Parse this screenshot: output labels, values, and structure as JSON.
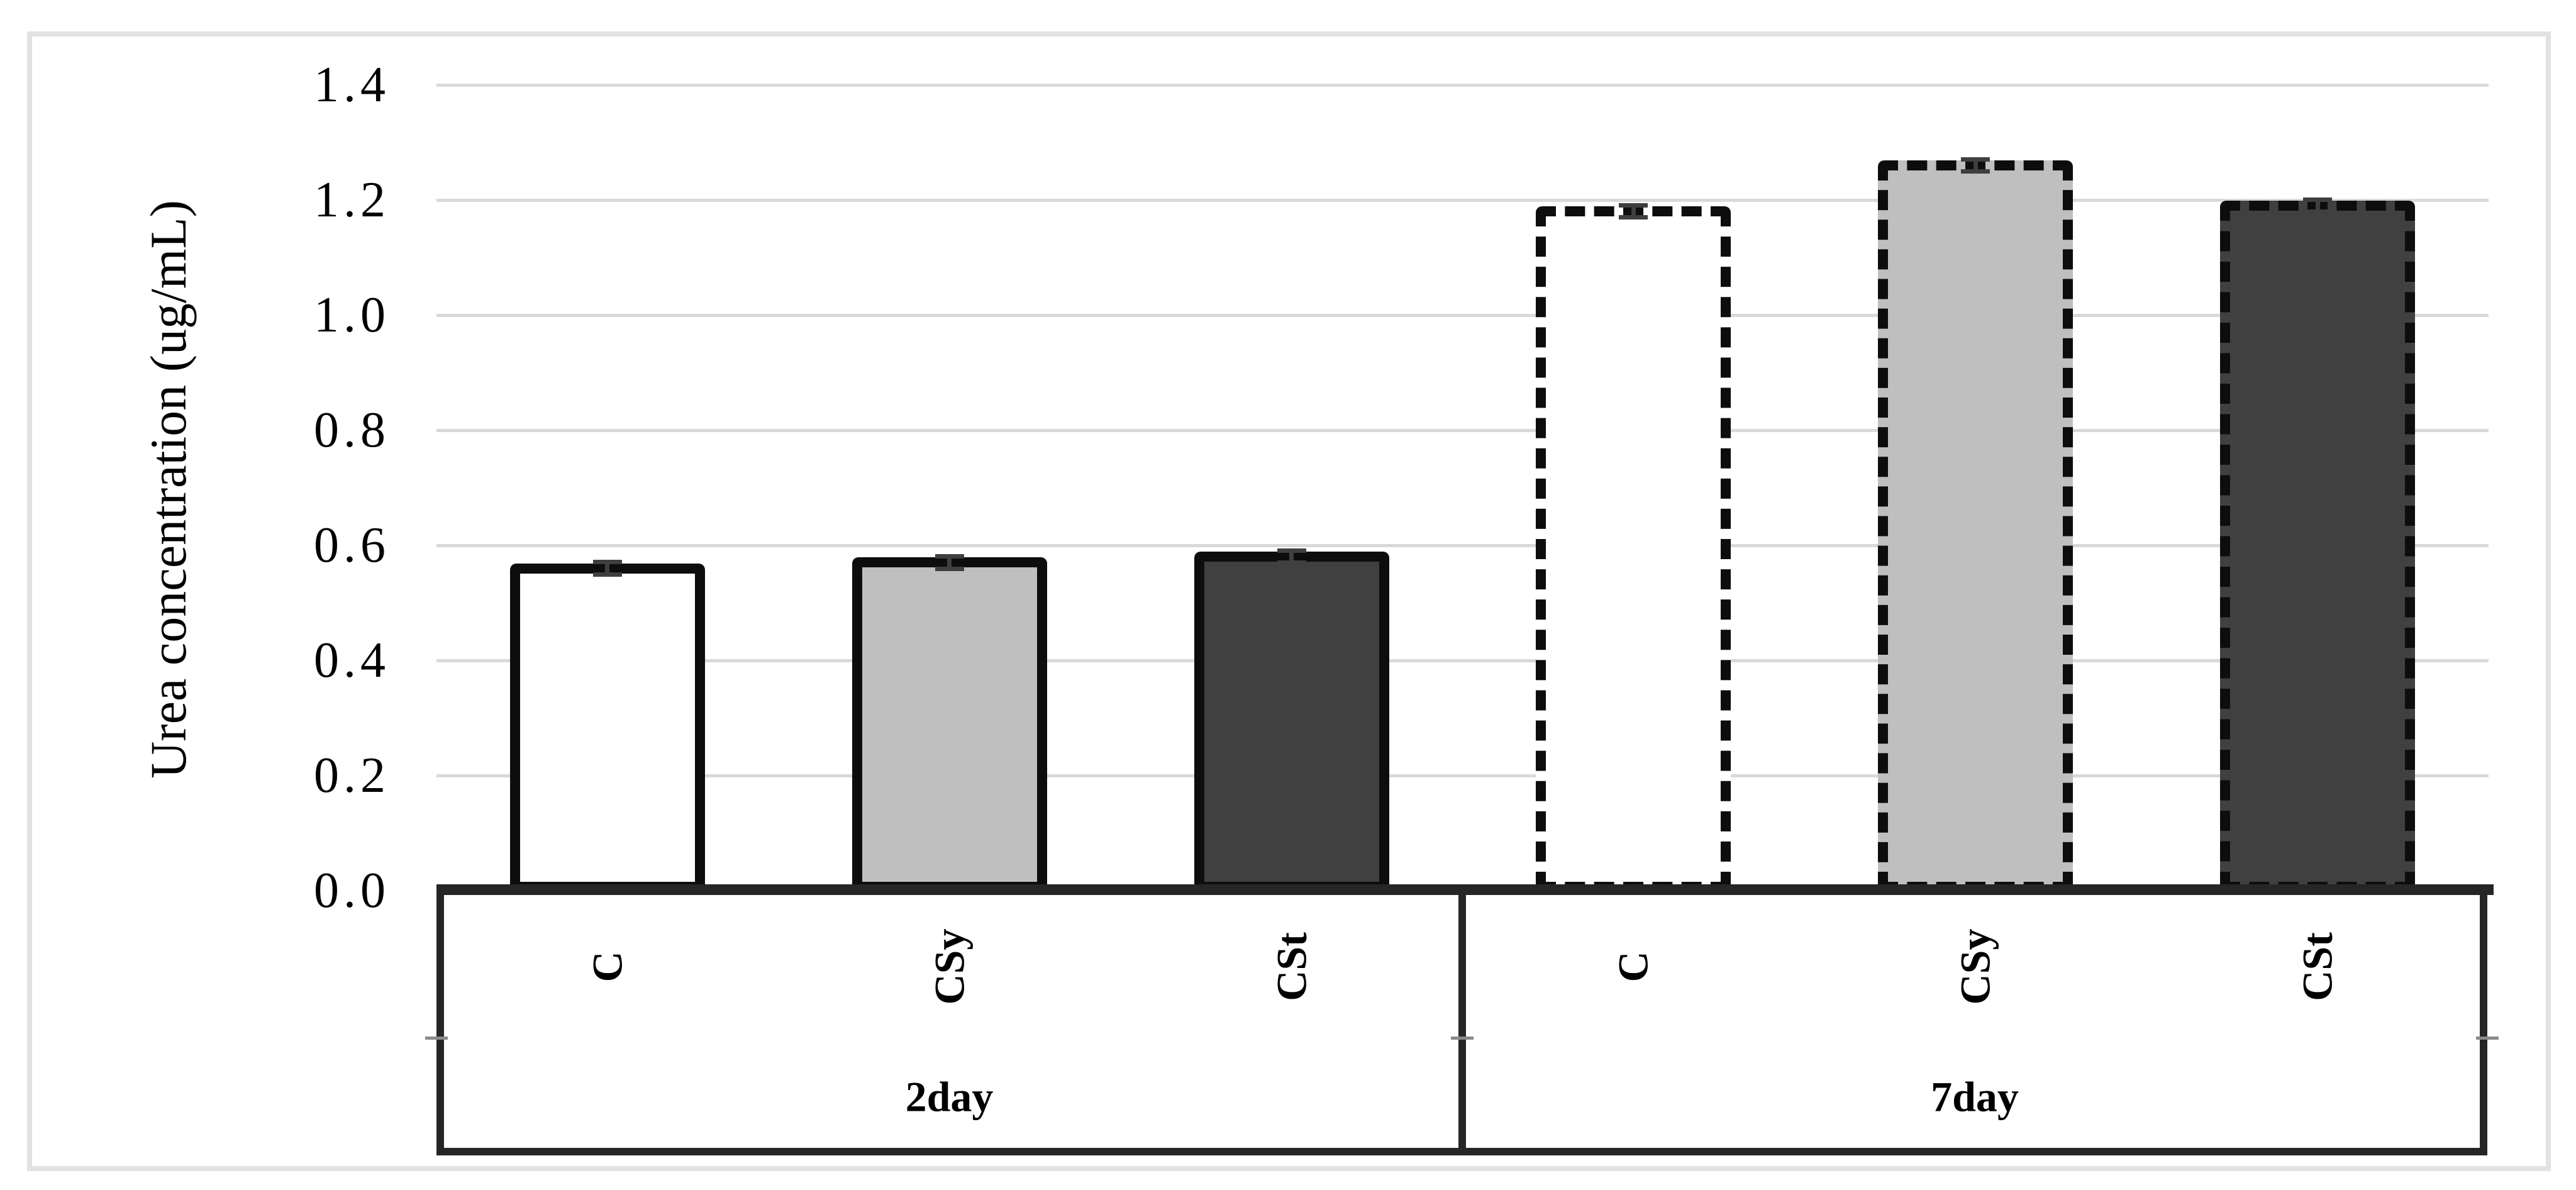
{
  "chart_data": {
    "type": "bar",
    "title": "",
    "ylabel": "Urea concentration (ug/mL)",
    "xlabel": "",
    "ylim": [
      0.0,
      1.4
    ],
    "ytick_step": 0.2,
    "yticks": [
      "0.0",
      "0.2",
      "0.4",
      "0.6",
      "0.8",
      "1.0",
      "1.2",
      "1.4"
    ],
    "grid": "horizontal-only",
    "legend": "none",
    "categories": [
      "2day",
      "7day"
    ],
    "groups": [
      {
        "label": "2day",
        "border_style": "solid",
        "bars": [
          {
            "label": "C",
            "value": 0.56,
            "error": 0.01,
            "fill": "#ffffff"
          },
          {
            "label": "CSy",
            "value": 0.57,
            "error": 0.01,
            "fill": "#bfbfbf"
          },
          {
            "label": "CSt",
            "value": 0.58,
            "error": 0.01,
            "fill": "#404040"
          }
        ]
      },
      {
        "label": "7day",
        "border_style": "dashed",
        "bars": [
          {
            "label": "C",
            "value": 1.18,
            "error": 0.01,
            "fill": "#ffffff"
          },
          {
            "label": "CSy",
            "value": 1.26,
            "error": 0.01,
            "fill": "#bfbfbf"
          },
          {
            "label": "CSt",
            "value": 1.19,
            "error": 0.01,
            "fill": "#404040"
          }
        ]
      }
    ],
    "colors": {
      "bar_border": "#0d0d0d",
      "axis": "#262626",
      "gridline": "#d9d9d9",
      "error_bar": "#3f3f3f",
      "frame": "#e2e2e2",
      "background": "#ffffff"
    }
  }
}
